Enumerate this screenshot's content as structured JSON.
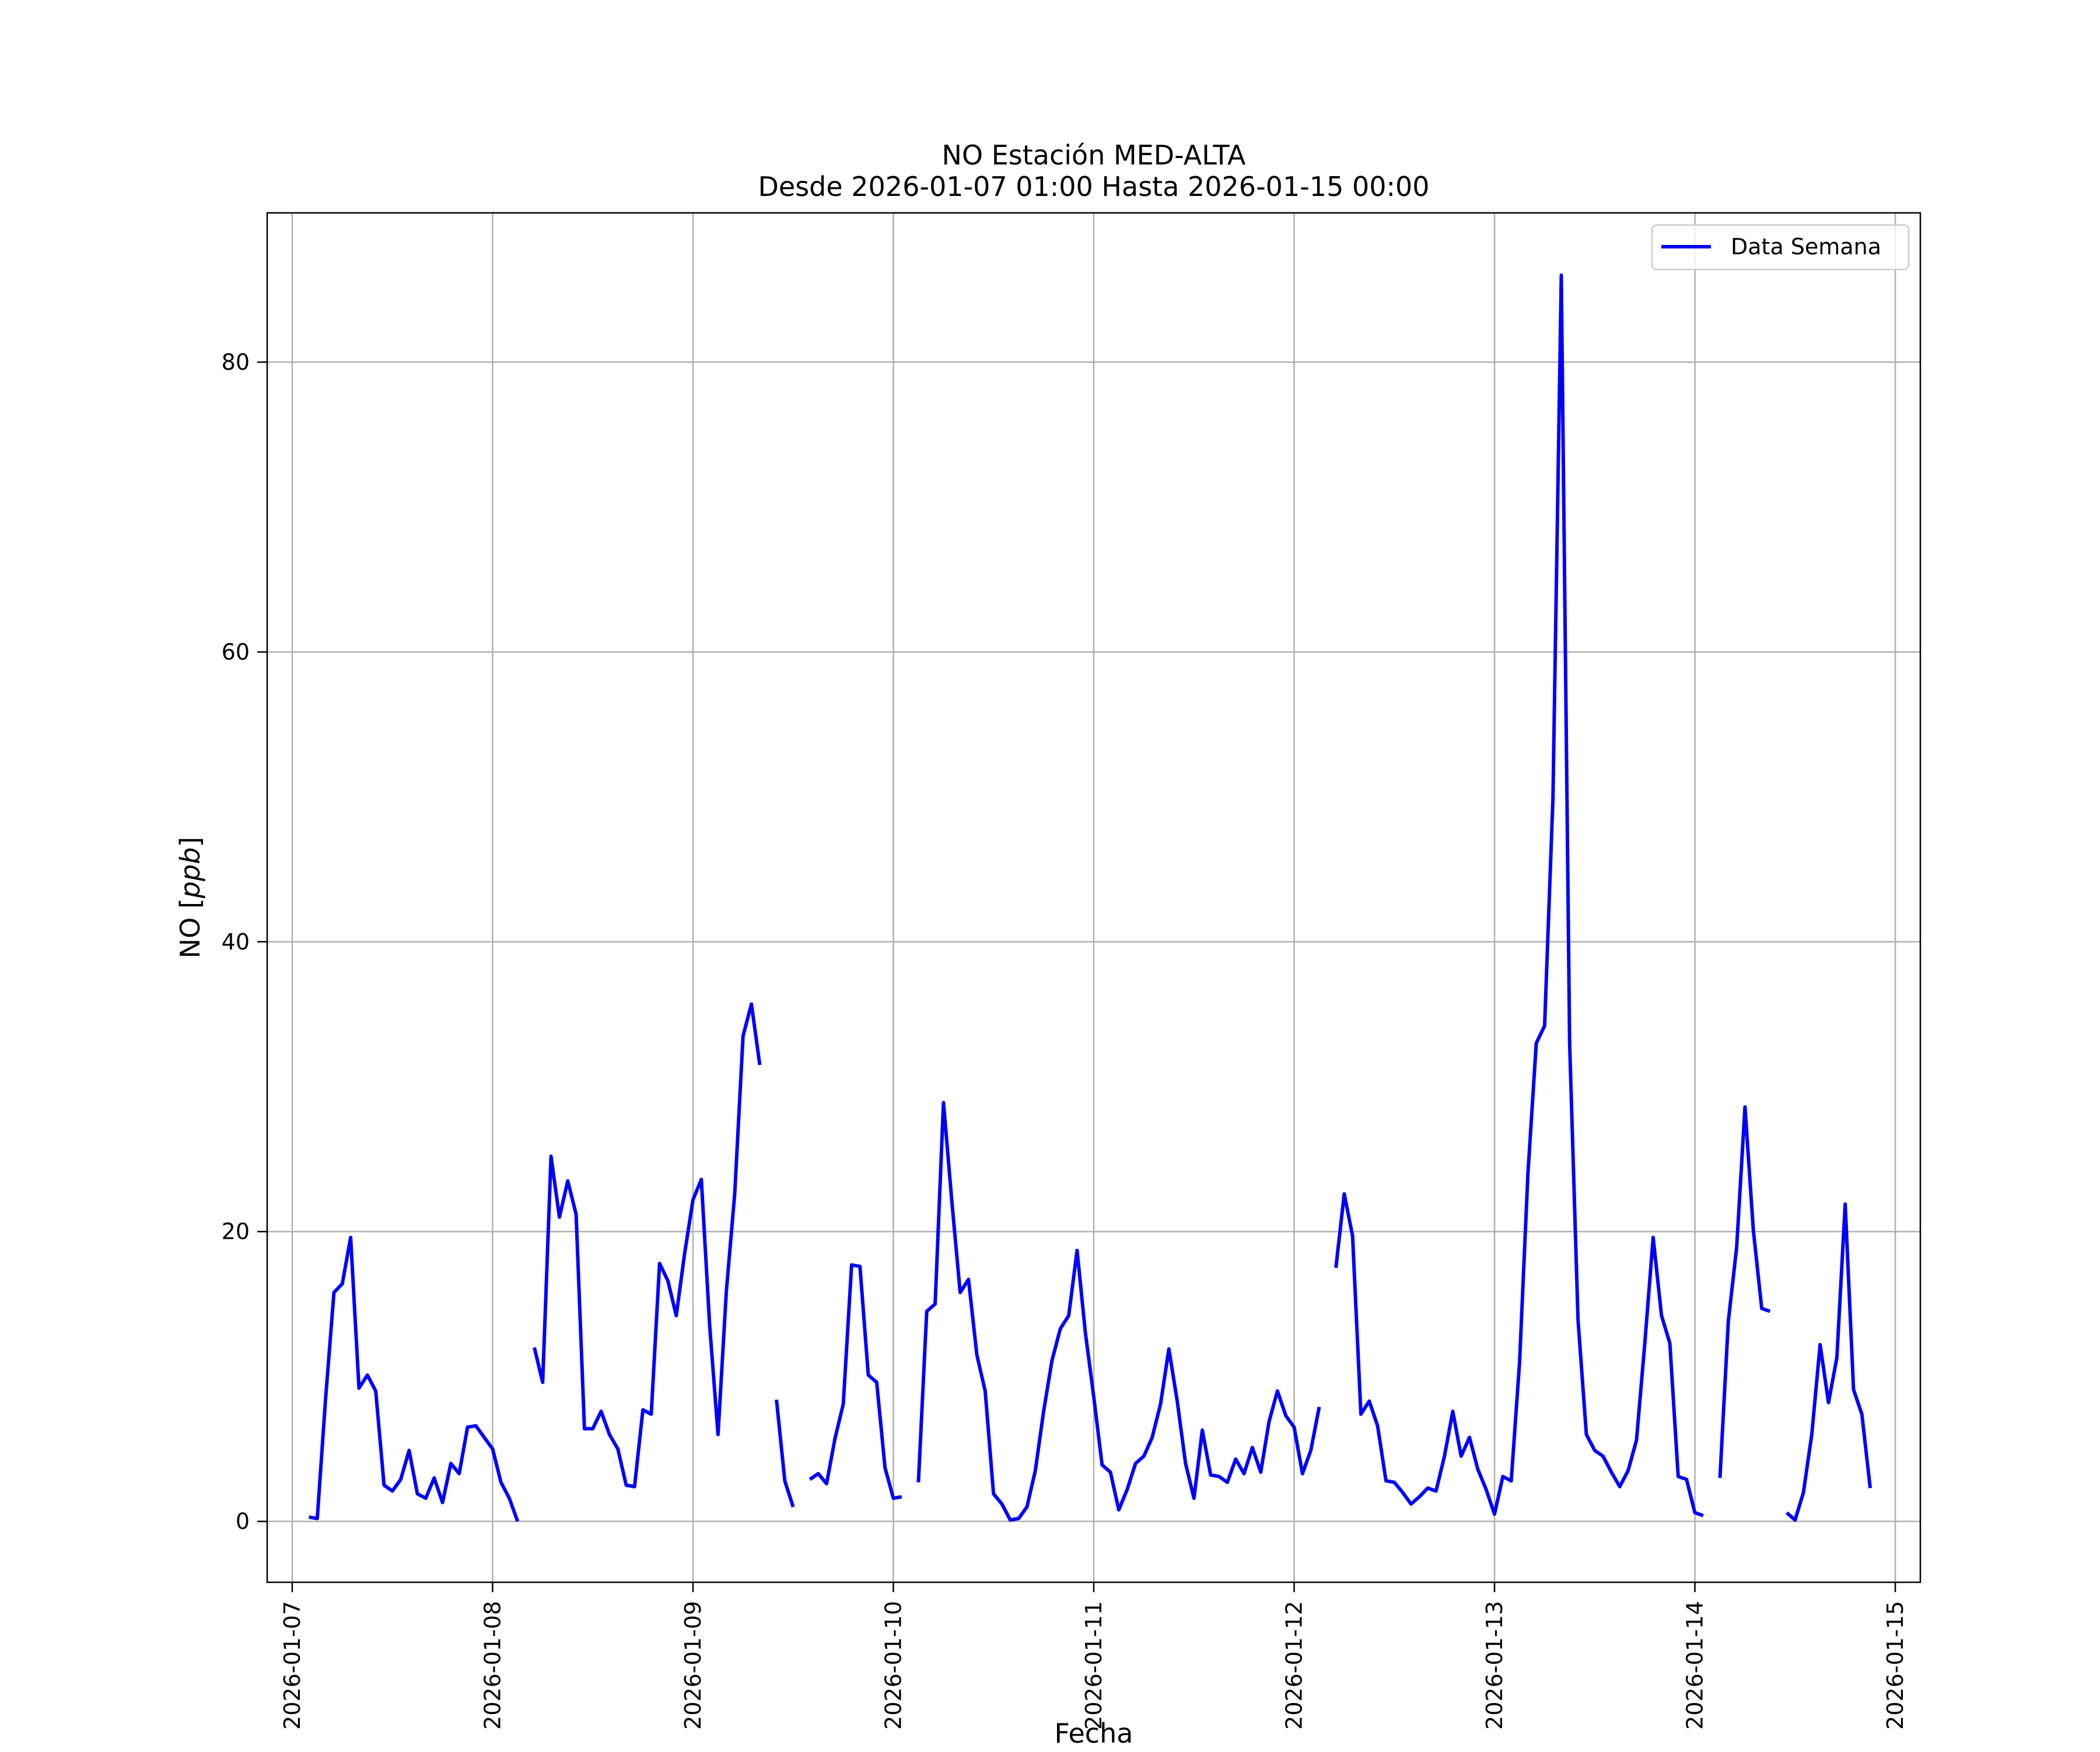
{
  "chart_data": {
    "type": "line",
    "title": "NO Estación MED-ALTA",
    "subtitle": "Desde 2026-01-07 01:00 Hasta 2026-01-15 00:00",
    "xlabel": "Fecha",
    "ylabel_main": "NO [",
    "ylabel_unit": "ppb",
    "ylabel_close": "]",
    "xlim": [
      "2026-01-06 21:00",
      "2026-01-15 03:00"
    ],
    "ylim": [
      -4.2,
      90.3
    ],
    "x_ticks": [
      "2026-01-07",
      "2026-01-08",
      "2026-01-09",
      "2026-01-10",
      "2026-01-11",
      "2026-01-12",
      "2026-01-13",
      "2026-01-14",
      "2026-01-15"
    ],
    "y_ticks": [
      0,
      20,
      40,
      60,
      80
    ],
    "grid": true,
    "legend_position": "top-right",
    "series": [
      {
        "name": "Data Semana",
        "color": "#0000ff",
        "start": "2026-01-07 01:00",
        "step_hours": 1,
        "values": [
          null,
          0.3,
          0.2,
          8.5,
          15.8,
          16.4,
          19.6,
          9.2,
          10.1,
          9.0,
          2.5,
          2.1,
          2.9,
          4.9,
          1.9,
          1.6,
          3.0,
          1.3,
          4.0,
          3.3,
          6.5,
          6.6,
          5.8,
          5.0,
          2.7,
          1.6,
          0.0,
          null,
          12.0,
          9.6,
          25.2,
          21.0,
          23.5,
          21.2,
          6.4,
          6.4,
          7.6,
          6.0,
          5.0,
          2.5,
          2.4,
          7.7,
          7.4,
          17.8,
          16.6,
          14.2,
          18.5,
          22.2,
          23.6,
          13.5,
          6.0,
          15.9,
          22.6,
          33.5,
          35.7,
          31.5,
          null,
          8.4,
          2.8,
          1.0,
          null,
          2.9,
          3.3,
          2.6,
          5.7,
          8.1,
          17.7,
          17.6,
          10.1,
          9.6,
          3.7,
          1.6,
          1.7,
          null,
          2.7,
          14.5,
          15.0,
          28.9,
          22.1,
          15.8,
          16.7,
          11.5,
          9.0,
          1.9,
          1.2,
          0.1,
          0.2,
          1.0,
          3.5,
          7.6,
          11.1,
          13.3,
          14.2,
          18.7,
          13.0,
          8.6,
          3.9,
          3.4,
          0.8,
          2.2,
          4.0,
          4.5,
          5.8,
          8.1,
          11.9,
          8.3,
          4.0,
          1.6,
          6.3,
          3.2,
          3.1,
          2.7,
          4.3,
          3.3,
          5.1,
          3.4,
          6.9,
          9.0,
          7.3,
          6.5,
          3.3,
          4.9,
          7.9,
          null,
          17.5,
          22.6,
          19.7,
          7.4,
          8.3,
          6.6,
          2.8,
          2.7,
          2.0,
          1.2,
          1.7,
          2.3,
          2.1,
          4.5,
          7.6,
          4.5,
          5.8,
          3.6,
          2.2,
          0.5,
          3.1,
          2.8,
          11.0,
          24.0,
          33.0,
          34.2,
          49.9,
          86.0,
          33.0,
          13.9,
          6.0,
          4.9,
          4.5,
          3.4,
          2.4,
          3.5,
          5.6,
          12.3,
          19.6,
          14.2,
          12.3,
          3.1,
          2.9,
          0.6,
          0.4,
          null,
          3.0,
          13.8,
          18.9,
          28.6,
          20.1,
          14.7,
          14.5,
          null,
          0.6,
          0.1,
          2.0,
          6.0,
          12.2,
          8.2,
          11.3,
          21.9,
          9.1,
          7.4,
          2.3
        ]
      }
    ]
  }
}
